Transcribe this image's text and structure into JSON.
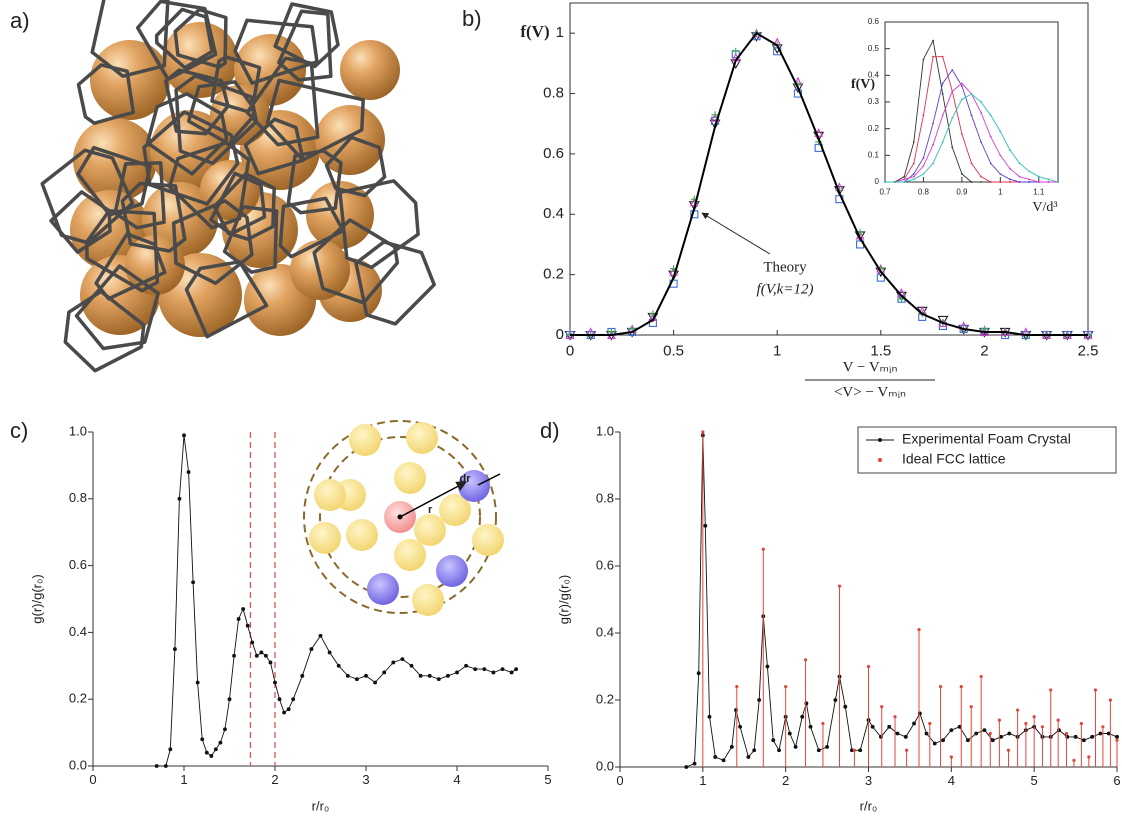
{
  "panel_labels": [
    "a)",
    "b)",
    "c)",
    "d)"
  ],
  "chart_data": [
    {
      "type": "line",
      "ylabel": "f(V)",
      "xlabel_numerator": "V − Vₘᵢₙ",
      "xlabel_denominator": "<V> − Vₘᵢₙ",
      "annotation": {
        "text": "Theory",
        "subtext": "f(V,k=12)"
      },
      "xlim": [
        0,
        2.5
      ],
      "ylim": [
        0,
        1.1
      ],
      "xticks": [
        0,
        0.5,
        1,
        1.5,
        2,
        2.5
      ],
      "yticks": [
        0,
        0.2,
        0.4,
        0.6,
        0.8,
        1
      ],
      "x": [
        0,
        0.1,
        0.2,
        0.3,
        0.4,
        0.5,
        0.6,
        0.7,
        0.8,
        0.9,
        1.0,
        1.1,
        1.2,
        1.3,
        1.4,
        1.5,
        1.6,
        1.7,
        1.8,
        1.9,
        2.0,
        2.1,
        2.2,
        2.3,
        2.4,
        2.5
      ],
      "series": [
        {
          "color": "#9a9a9a",
          "marker": "triangle-down",
          "values": [
            0,
            0,
            0,
            0.01,
            0.06,
            0.2,
            0.43,
            0.7,
            0.9,
            0.99,
            0.95,
            0.82,
            0.66,
            0.48,
            0.33,
            0.21,
            0.13,
            0.08,
            0.05,
            0.02,
            0.01,
            0.01,
            0,
            0,
            0,
            0
          ]
        },
        {
          "color": "#3b6fd6",
          "marker": "square",
          "values": [
            0,
            0,
            0.01,
            0.01,
            0.04,
            0.17,
            0.4,
            0.71,
            0.93,
            0.99,
            0.94,
            0.8,
            0.62,
            0.45,
            0.3,
            0.19,
            0.12,
            0.06,
            0.03,
            0.02,
            0.01,
            0,
            0,
            0,
            0,
            0
          ]
        },
        {
          "color": "#d63bd0",
          "marker": "triangle",
          "values": [
            0,
            0.01,
            0,
            0.02,
            0.06,
            0.21,
            0.44,
            0.72,
            0.92,
            1.0,
            0.97,
            0.84,
            0.67,
            0.49,
            0.33,
            0.22,
            0.14,
            0.08,
            0.04,
            0.03,
            0.01,
            0.01,
            0.01,
            0,
            0,
            0
          ]
        },
        {
          "color": "#3fae4a",
          "marker": "plus",
          "values": [
            0,
            0,
            0.01,
            0.02,
            0.07,
            0.22,
            0.45,
            0.73,
            0.94,
            1.0,
            0.96,
            0.83,
            0.64,
            0.48,
            0.34,
            0.22,
            0.12,
            0.07,
            0.04,
            0.02,
            0.02,
            0.01,
            0,
            0,
            0,
            0
          ]
        },
        {
          "color": "#000000",
          "marker": "line",
          "values": [
            0,
            0,
            0,
            0.01,
            0.05,
            0.19,
            0.42,
            0.69,
            0.91,
            1.0,
            0.96,
            0.82,
            0.65,
            0.47,
            0.32,
            0.21,
            0.13,
            0.07,
            0.04,
            0.02,
            0.01,
            0.01,
            0,
            0,
            0,
            0
          ]
        }
      ]
    },
    {
      "type": "line",
      "ylabel": "f(V)",
      "xlabel": "V/d³",
      "xlim": [
        0.7,
        1.15
      ],
      "ylim": [
        0,
        0.6
      ],
      "xticks": [
        0.7,
        0.8,
        0.9,
        1,
        1.1
      ],
      "yticks": [
        0,
        0.1,
        0.2,
        0.3,
        0.4,
        0.5,
        0.6
      ],
      "x": [
        0.7,
        0.725,
        0.75,
        0.775,
        0.8,
        0.825,
        0.85,
        0.875,
        0.9,
        0.925,
        0.95,
        0.975,
        1.0,
        1.025,
        1.05,
        1.075,
        1.1,
        1.125,
        1.15
      ],
      "series": [
        {
          "color": "#333333",
          "marker": "line-dots",
          "values": [
            0,
            0,
            0.02,
            0.15,
            0.46,
            0.53,
            0.33,
            0.13,
            0.03,
            0,
            0,
            0,
            0,
            0,
            0,
            0,
            0,
            0,
            0
          ]
        },
        {
          "color": "#e0304a",
          "marker": "line-dots",
          "values": [
            0,
            0,
            0.01,
            0.07,
            0.25,
            0.47,
            0.47,
            0.34,
            0.18,
            0.07,
            0.02,
            0,
            0,
            0,
            0,
            0,
            0,
            0,
            0
          ]
        },
        {
          "color": "#5a3fd6",
          "marker": "line-dots",
          "values": [
            0,
            0,
            0,
            0.03,
            0.09,
            0.22,
            0.37,
            0.42,
            0.36,
            0.25,
            0.15,
            0.07,
            0.03,
            0.01,
            0,
            0,
            0,
            0,
            0
          ]
        },
        {
          "color": "#d63bd0",
          "marker": "line-dots",
          "values": [
            0,
            0,
            0.01,
            0.02,
            0.06,
            0.14,
            0.25,
            0.34,
            0.37,
            0.33,
            0.26,
            0.17,
            0.1,
            0.05,
            0.02,
            0.01,
            0,
            0,
            0
          ]
        },
        {
          "color": "#2bbfb3",
          "marker": "line-dots",
          "values": [
            0,
            0,
            0,
            0.01,
            0.03,
            0.07,
            0.15,
            0.24,
            0.31,
            0.33,
            0.3,
            0.25,
            0.19,
            0.12,
            0.07,
            0.04,
            0.02,
            0.01,
            0
          ]
        }
      ]
    },
    {
      "type": "line",
      "ylabel": "g(r)/g(r₀)",
      "xlabel": "r/r₀",
      "inset_labels": [
        "r",
        "dr"
      ],
      "xlim": [
        0,
        5
      ],
      "ylim": [
        0,
        1.0
      ],
      "xticks": [
        0,
        1,
        2,
        3,
        4,
        5
      ],
      "yticks": [
        {
          "value": 0,
          "label": "0.0"
        },
        0.2,
        0.4,
        0.6,
        0.8,
        {
          "value": 1,
          "label": "1.0"
        }
      ],
      "vlines": {
        "color": "#d9534f",
        "x": [
          1.73,
          2.0
        ]
      },
      "series": [
        {
          "color": "#111111",
          "marker": "line-dots",
          "x": [
            0.7,
            0.8,
            0.85,
            0.9,
            0.95,
            1.0,
            1.05,
            1.1,
            1.15,
            1.2,
            1.25,
            1.3,
            1.35,
            1.4,
            1.45,
            1.5,
            1.55,
            1.6,
            1.65,
            1.7,
            1.75,
            1.8,
            1.85,
            1.9,
            1.95,
            2.0,
            2.05,
            2.1,
            2.15,
            2.2,
            2.3,
            2.4,
            2.5,
            2.6,
            2.7,
            2.8,
            2.9,
            3.0,
            3.1,
            3.2,
            3.3,
            3.4,
            3.5,
            3.6,
            3.7,
            3.8,
            3.9,
            4.0,
            4.1,
            4.2,
            4.3,
            4.4,
            4.5,
            4.6,
            4.65
          ],
          "values": [
            0,
            0,
            0.05,
            0.35,
            0.8,
            0.99,
            0.88,
            0.55,
            0.25,
            0.08,
            0.04,
            0.03,
            0.05,
            0.07,
            0.11,
            0.2,
            0.33,
            0.44,
            0.47,
            0.42,
            0.37,
            0.33,
            0.34,
            0.33,
            0.31,
            0.25,
            0.2,
            0.16,
            0.17,
            0.2,
            0.27,
            0.35,
            0.39,
            0.34,
            0.3,
            0.27,
            0.26,
            0.27,
            0.25,
            0.28,
            0.31,
            0.32,
            0.3,
            0.27,
            0.27,
            0.26,
            0.27,
            0.28,
            0.3,
            0.29,
            0.29,
            0.28,
            0.29,
            0.28,
            0.29
          ]
        }
      ]
    },
    {
      "type": "line",
      "ylabel": "g(r)/g(r₀)",
      "xlabel": "r/r₀",
      "xlim": [
        0,
        6
      ],
      "ylim": [
        0,
        1.0
      ],
      "xticks": [
        0,
        1,
        2,
        3,
        4,
        5,
        6
      ],
      "yticks": [
        {
          "value": 0,
          "label": "0.0"
        },
        0.2,
        0.4,
        0.6,
        0.8,
        {
          "value": 1,
          "label": "1.0"
        }
      ],
      "legend": "upper right",
      "series": [
        {
          "name": "Experimental Foam Crystal",
          "color": "#111111",
          "marker": "line-dots",
          "x": [
            0.8,
            0.9,
            0.95,
            1.0,
            1.03,
            1.08,
            1.15,
            1.25,
            1.35,
            1.4,
            1.45,
            1.55,
            1.62,
            1.68,
            1.73,
            1.78,
            1.85,
            1.92,
            2.0,
            2.05,
            2.12,
            2.2,
            2.25,
            2.3,
            2.4,
            2.5,
            2.6,
            2.65,
            2.72,
            2.8,
            2.9,
            3.0,
            3.05,
            3.15,
            3.25,
            3.35,
            3.45,
            3.55,
            3.62,
            3.7,
            3.8,
            3.9,
            4.0,
            4.1,
            4.2,
            4.3,
            4.4,
            4.5,
            4.6,
            4.7,
            4.8,
            4.9,
            5.0,
            5.1,
            5.2,
            5.3,
            5.4,
            5.5,
            5.6,
            5.7,
            5.8,
            5.9,
            6.0
          ],
          "values": [
            0,
            0.01,
            0.28,
            0.99,
            0.72,
            0.15,
            0.03,
            0.02,
            0.06,
            0.17,
            0.12,
            0.03,
            0.05,
            0.2,
            0.45,
            0.3,
            0.08,
            0.05,
            0.15,
            0.1,
            0.06,
            0.15,
            0.19,
            0.12,
            0.05,
            0.06,
            0.2,
            0.27,
            0.18,
            0.05,
            0.05,
            0.14,
            0.12,
            0.09,
            0.12,
            0.1,
            0.09,
            0.13,
            0.16,
            0.1,
            0.07,
            0.08,
            0.11,
            0.12,
            0.08,
            0.1,
            0.11,
            0.08,
            0.09,
            0.1,
            0.09,
            0.11,
            0.12,
            0.09,
            0.09,
            0.11,
            0.09,
            0.09,
            0.08,
            0.09,
            0.1,
            0.1,
            0.09
          ]
        },
        {
          "name": "Ideal FCC lattice",
          "color": "#e0463c",
          "marker": "stems",
          "x": [
            1.0,
            1.41,
            1.73,
            2.0,
            2.24,
            2.45,
            2.65,
            2.83,
            3.0,
            3.16,
            3.32,
            3.46,
            3.61,
            3.74,
            3.87,
            4.0,
            4.12,
            4.24,
            4.36,
            4.47,
            4.58,
            4.69,
            4.8,
            4.9,
            5.0,
            5.1,
            5.2,
            5.29,
            5.39,
            5.48,
            5.57,
            5.66,
            5.74,
            5.83,
            5.92,
            6.0
          ],
          "values": [
            1.0,
            0.24,
            0.65,
            0.24,
            0.32,
            0.13,
            0.54,
            0.05,
            0.3,
            0.18,
            0.15,
            0.05,
            0.41,
            0.13,
            0.24,
            0.03,
            0.24,
            0.18,
            0.27,
            0.1,
            0.14,
            0.05,
            0.17,
            0.13,
            0.15,
            0.12,
            0.23,
            0.14,
            0.1,
            0.02,
            0.13,
            0.03,
            0.23,
            0.12,
            0.2,
            0.08
          ]
        }
      ]
    }
  ]
}
